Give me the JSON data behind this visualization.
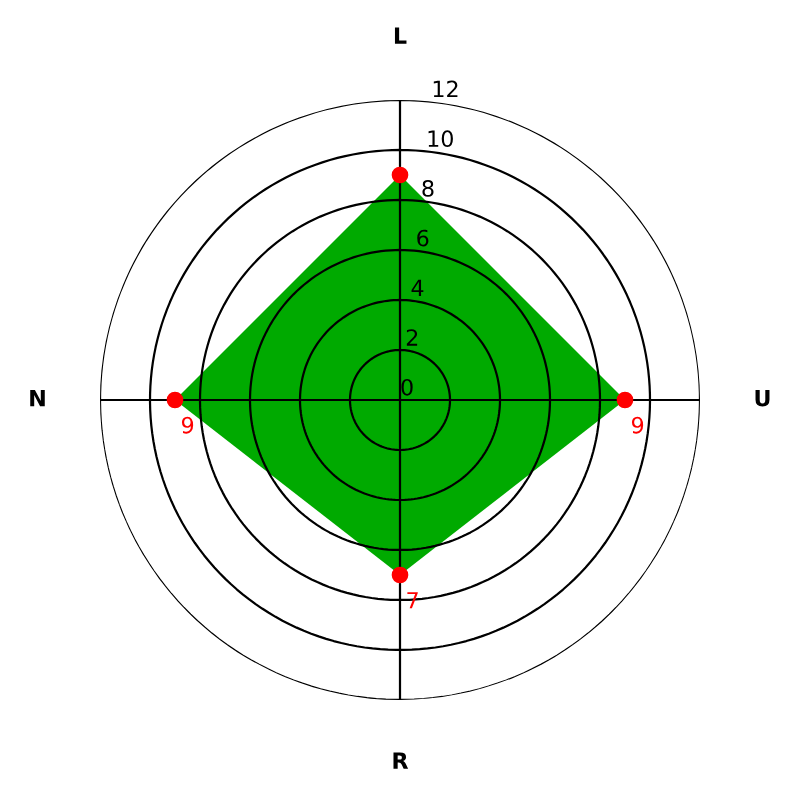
{
  "chart_data": {
    "type": "radar",
    "categories": [
      "L",
      "U",
      "R",
      "N"
    ],
    "series": [
      {
        "color": "#00aa00",
        "values": [
          9,
          9,
          7,
          9
        ],
        "value_labels": [
          null,
          "9",
          "7",
          "9"
        ]
      }
    ],
    "ylim": [
      0,
      12
    ],
    "yticks": [
      0,
      2,
      4,
      6,
      8,
      10,
      12
    ],
    "grid": true,
    "marker": "circle"
  }
}
